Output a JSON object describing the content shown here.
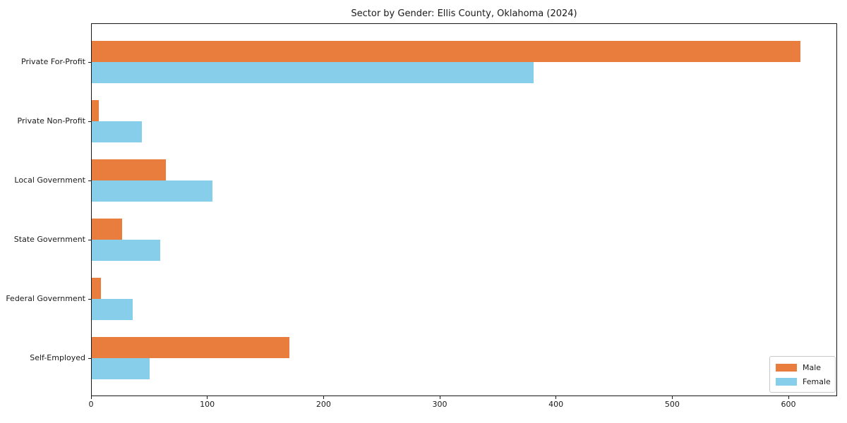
{
  "chart_data": {
    "type": "bar",
    "orientation": "horizontal",
    "title": "Sector by Gender: Ellis County, Oklahoma (2024)",
    "categories": [
      "Private For-Profit",
      "Private Non-Profit",
      "Local Government",
      "State Government",
      "Federal Government",
      "Self-Employed"
    ],
    "series": [
      {
        "name": "Male",
        "color": "#e87d3d",
        "values": [
          610,
          6,
          64,
          26,
          8,
          170
        ]
      },
      {
        "name": "Female",
        "color": "#87ceeb",
        "values": [
          380,
          43,
          104,
          59,
          35,
          50
        ]
      }
    ],
    "xlabel": "",
    "ylabel": "",
    "xlim": [
      0,
      642
    ],
    "xticks": [
      0,
      100,
      200,
      300,
      400,
      500,
      600
    ],
    "grid": false,
    "legend_position": "lower right",
    "bar_arrangement": "male-above-female"
  }
}
